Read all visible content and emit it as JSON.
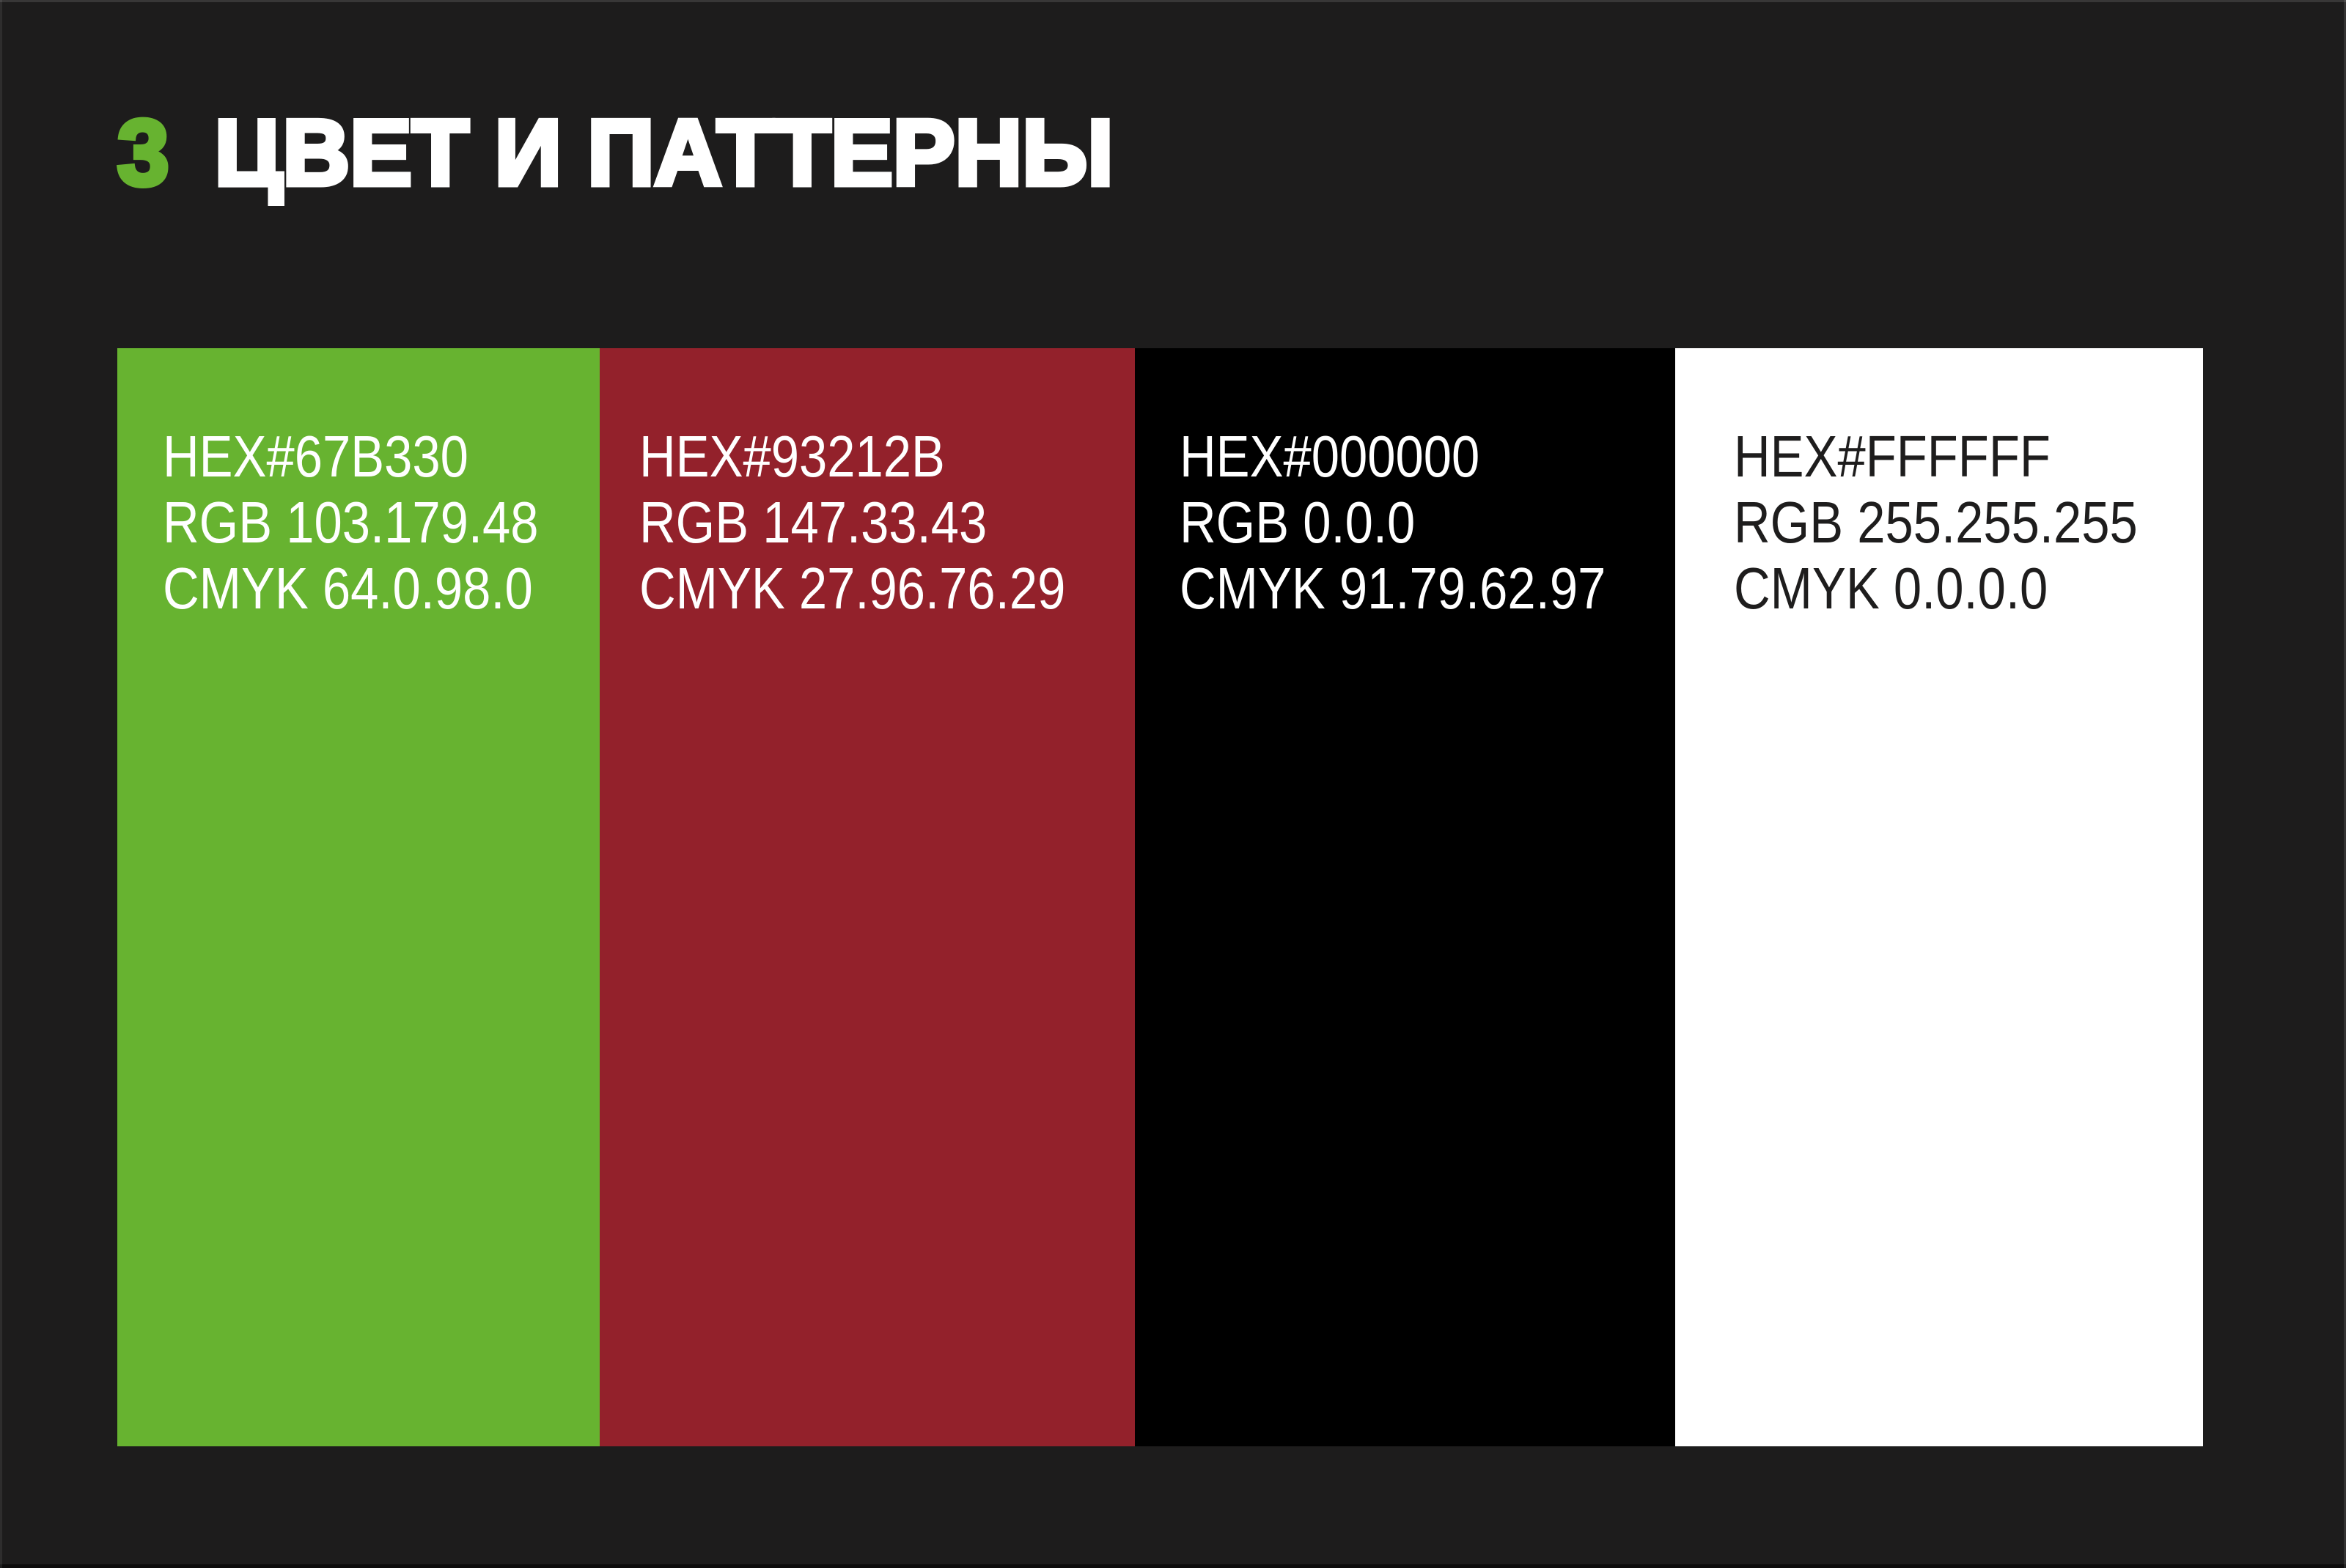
{
  "slide": {
    "background": "#1d1c1c",
    "header": {
      "number": "3",
      "number_color": "#67b330",
      "title": "ЦВЕТ И ПАТТЕРНЫ",
      "title_color": "#ffffff"
    },
    "palette": {
      "swatches": [
        {
          "name": "green",
          "fill": "#67b330",
          "text_color": "#ffffff",
          "hex": "HEX#67B330",
          "rgb": "RGB 103.179.48",
          "cmyk": "CMYK 64.0.98.0"
        },
        {
          "name": "red",
          "fill": "#93212b",
          "text_color": "#ffffff",
          "hex": "HEX#93212B",
          "rgb": "RGB 147.33.43",
          "cmyk": "CMYK 27.96.76.29"
        },
        {
          "name": "black",
          "fill": "#000000",
          "text_color": "#ffffff",
          "hex": "HEX#000000",
          "rgb": "RGB 0.0.0",
          "cmyk": "CMYK 91.79.62.97"
        },
        {
          "name": "white",
          "fill": "#ffffff",
          "text_color": "#1e1d1d",
          "hex": "HEX#FFFFFF",
          "rgb": "RGB 255.255.255",
          "cmyk": "CMYK 0.0.0.0"
        }
      ]
    }
  }
}
